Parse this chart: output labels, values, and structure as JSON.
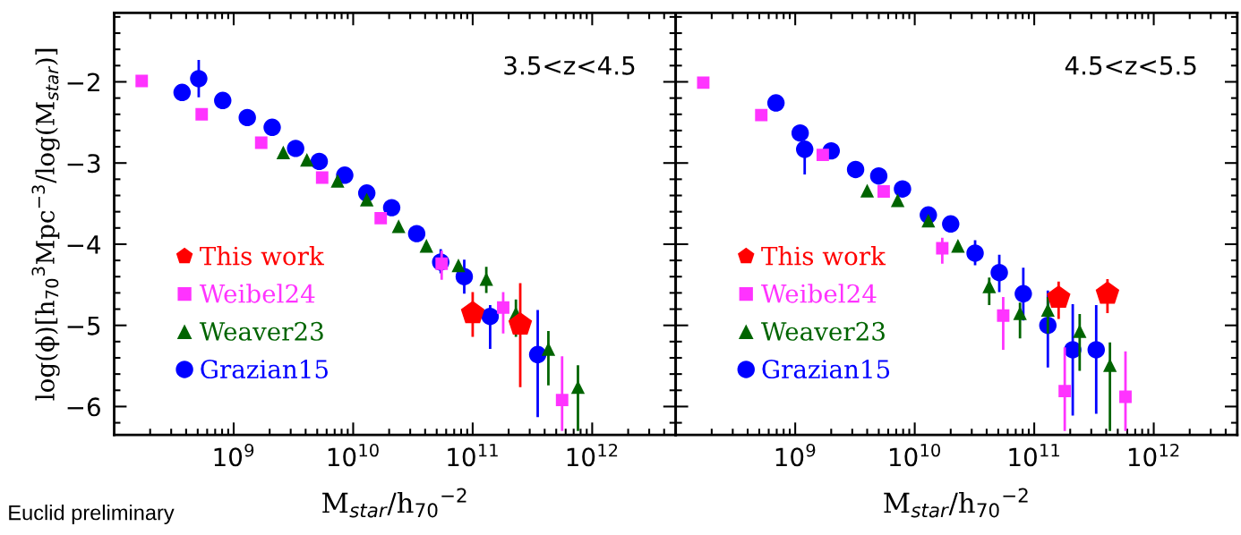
{
  "chart_data": [
    {
      "type": "scatter",
      "xlabel": "M$_{star}$/h$_{70}$$^{−2}$",
      "ylabel": "log(ϕ)[h$_{70}$$^{3}$Mpc$^{−3}$/log(M$_{star}$)]",
      "annotations": [
        "3.5<z<4.5",
        "Euclid preliminary"
      ],
      "log": "x",
      "xlim": [
        100000000.0,
        5000000000000.0
      ],
      "ylim": [
        -6.35,
        -1.15
      ],
      "xticks": [
        {
          "value": 1000000000.0,
          "label": "10$^{9}$"
        },
        {
          "value": 10000000000.0,
          "label": "10$^{10}$"
        },
        {
          "value": 100000000000.0,
          "label": "10$^{11}$"
        },
        {
          "value": 1000000000000.0,
          "label": "10$^{12}$"
        }
      ],
      "yticks": [
        {
          "value": -2,
          "label": "−2"
        },
        {
          "value": -3,
          "label": "−3"
        },
        {
          "value": -4,
          "label": "−4"
        },
        {
          "value": -5,
          "label": "−5"
        },
        {
          "value": -6,
          "label": "−6"
        }
      ],
      "legend": "lower left",
      "grid": false,
      "series": [
        {
          "name": "This work",
          "color": "#ff0000",
          "x": [
            100000000000.0,
            250000000000.0
          ],
          "values": [
            -4.85,
            -4.99
          ],
          "errors": [
            [
              -5.14,
              -4.59
            ],
            [
              -5.76,
              -4.48
            ]
          ]
        },
        {
          "name": "Weibel24",
          "color": "#ff33ff",
          "marker": "square",
          "x": [
            170000000.0,
            540000000.0,
            1700000000.0,
            5500000000.0,
            17000000000.0,
            55000000000.0,
            180000000000.0,
            560000000000.0
          ],
          "values": [
            -1.99,
            -2.4,
            -2.75,
            -3.18,
            -3.68,
            -4.24,
            -4.78,
            -5.92
          ],
          "errors": [
            null,
            null,
            null,
            null,
            null,
            [
              -4.44,
              -4.08
            ],
            [
              -5.1,
              -4.59
            ],
            [
              -6.3,
              -5.38
            ]
          ]
        },
        {
          "name": "Weaver23",
          "color": "#006400",
          "marker": "triangle",
          "x": [
            2600000000.0,
            4100000000.0,
            7400000000.0,
            13000000000.0,
            24000000000.0,
            41000000000.0,
            76000000000.0,
            130000000000.0,
            230000000000.0,
            430000000000.0,
            760000000000.0
          ],
          "values": [
            -2.87,
            -2.96,
            -3.22,
            -3.45,
            -3.78,
            -4.02,
            -4.26,
            -4.43,
            -4.85,
            -5.29,
            -5.76
          ],
          "errors": [
            null,
            null,
            null,
            null,
            null,
            null,
            null,
            [
              -4.6,
              -4.28
            ],
            [
              -5.14,
              -4.68
            ],
            [
              -5.74,
              -5.07
            ],
            [
              -6.3,
              -5.49
            ]
          ]
        },
        {
          "name": "Grazian15",
          "color": "#0000ff",
          "marker": "circle",
          "x": [
            370000000.0,
            510000000.0,
            810000000.0,
            1300000000.0,
            2100000000.0,
            3300000000.0,
            5200000000.0,
            8500000000.0,
            13000000000.0,
            21000000000.0,
            34000000000.0,
            54000000000.0,
            85000000000.0,
            140000000000.0,
            350000000000.0
          ],
          "values": [
            -2.13,
            -1.96,
            -2.23,
            -2.44,
            -2.56,
            -2.82,
            -2.98,
            -3.15,
            -3.37,
            -3.55,
            -3.87,
            -4.22,
            -4.4,
            -4.89,
            -5.36
          ],
          "errors": [
            null,
            [
              -2.19,
              -1.73
            ],
            null,
            null,
            null,
            null,
            null,
            null,
            null,
            null,
            null,
            [
              -4.36,
              -4.06
            ],
            [
              -4.61,
              -4.19
            ],
            [
              -5.29,
              -4.75
            ],
            [
              -6.13,
              -4.81
            ]
          ]
        }
      ]
    },
    {
      "type": "scatter",
      "xlabel": "M$_{star}$/h$_{70}$$^{−2}$",
      "annotations": [
        "4.5<z<5.5"
      ],
      "log": "x",
      "xlim": [
        100000000.0,
        5000000000000.0
      ],
      "ylim": [
        -6.35,
        -1.15
      ],
      "tick_labels": "x",
      "xticks": [
        {
          "value": 1000000000.0,
          "label": "10$^{9}$"
        },
        {
          "value": 10000000000.0,
          "label": "10$^{10}$"
        },
        {
          "value": 100000000000.0,
          "label": "10$^{11}$"
        },
        {
          "value": 1000000000000.0,
          "label": "10$^{12}$"
        }
      ],
      "yticks": [
        -2,
        -3,
        -4,
        -5,
        -6
      ],
      "legend": "lower left",
      "grid": false,
      "series": [
        {
          "name": "This work",
          "color": "#ff0000",
          "x": [
            160000000000.0,
            410000000000.0
          ],
          "values": [
            -4.66,
            -4.61
          ],
          "errors": [
            [
              -4.92,
              -4.46
            ],
            [
              -4.85,
              -4.43
            ]
          ]
        },
        {
          "name": "Weibel24",
          "color": "#ff33ff",
          "marker": "square",
          "x": [
            170000000.0,
            520000000.0,
            1700000000.0,
            5500000000.0,
            17000000000.0,
            55000000000.0,
            180000000000.0,
            580000000000.0
          ],
          "values": [
            -2.01,
            -2.41,
            -2.9,
            -3.35,
            -4.05,
            -4.88,
            -5.81,
            -5.88
          ],
          "errors": [
            null,
            null,
            null,
            null,
            [
              -4.24,
              -3.92
            ],
            [
              -5.3,
              -4.65
            ],
            [
              -6.3,
              -5.27
            ],
            [
              -6.3,
              -5.32
            ]
          ]
        },
        {
          "name": "Weaver23",
          "color": "#006400",
          "marker": "triangle",
          "x": [
            4000000000.0,
            7200000000.0,
            13000000000.0,
            23000000000.0,
            42000000000.0,
            76000000000.0,
            130000000000.0,
            240000000000.0,
            430000000000.0
          ],
          "values": [
            -3.34,
            -3.46,
            -3.71,
            -4.02,
            -4.52,
            -4.85,
            -4.81,
            -5.07,
            -5.49
          ],
          "errors": [
            null,
            null,
            null,
            null,
            [
              -4.75,
              -4.41
            ],
            [
              -5.16,
              -4.72
            ],
            [
              -5.1,
              -4.65
            ],
            [
              -5.56,
              -4.86
            ],
            [
              -6.3,
              -5.21
            ]
          ]
        },
        {
          "name": "Grazian15",
          "color": "#0000ff",
          "marker": "circle",
          "x": [
            690000000.0,
            1100000000.0,
            1200000000.0,
            2000000000.0,
            3200000000.0,
            5000000000.0,
            7900000000.0,
            13000000000.0,
            20000000000.0,
            32000000000.0,
            51000000000.0,
            81000000000.0,
            130000000000.0,
            210000000000.0,
            330000000000.0
          ],
          "values": [
            -2.26,
            -2.63,
            -2.83,
            -2.85,
            -3.08,
            -3.16,
            -3.32,
            -3.64,
            -3.75,
            -4.11,
            -4.35,
            -4.61,
            -5.0,
            -5.3,
            -5.3
          ],
          "errors": [
            null,
            null,
            [
              -3.14,
              -2.75
            ],
            null,
            null,
            null,
            null,
            null,
            null,
            [
              -4.26,
              -3.95
            ],
            [
              -4.59,
              -4.13
            ],
            [
              -4.94,
              -4.29
            ],
            [
              -5.52,
              -4.57
            ],
            [
              -6.11,
              -4.74
            ],
            [
              -6.09,
              -4.75
            ]
          ]
        }
      ]
    }
  ]
}
